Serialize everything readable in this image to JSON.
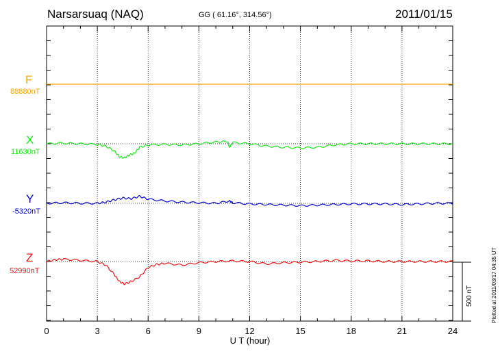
{
  "header": {
    "station": "Narsarsuaq (NAQ)",
    "coords": "GG ( 61.16°, 314.56°)",
    "date": "2011/01/15"
  },
  "xaxis": {
    "label": "U T (hour)",
    "ticks": [
      "0",
      "3",
      "6",
      "9",
      "12",
      "15",
      "18",
      "21",
      "24"
    ]
  },
  "scale_bar": {
    "label": "500 nT",
    "value_nT": 500
  },
  "footer": {
    "plotted": "Plotted at 2011/03/17 04:35 UT"
  },
  "components": [
    {
      "letter": "F",
      "baseline": "88880nT",
      "color": "#f5a800"
    },
    {
      "letter": "X",
      "baseline": "11630nT",
      "color": "#19e619"
    },
    {
      "letter": "Y",
      "baseline": "-5320nT",
      "color": "#0000d0"
    },
    {
      "letter": "Z",
      "baseline": "52990nT",
      "color": "#ee1111"
    }
  ],
  "chart_data": {
    "type": "line",
    "title": "Narsarsuaq (NAQ)",
    "xlabel": "U T (hour)",
    "xlim": [
      0,
      24
    ],
    "x_tick_step": 3,
    "grid": true,
    "series": [
      {
        "name": "F",
        "baseline_nT": 88880,
        "x": [
          0,
          6,
          12,
          18,
          24
        ],
        "y": [
          0,
          0,
          0,
          0,
          0
        ]
      },
      {
        "name": "X",
        "baseline_nT": 11630,
        "x": [
          0,
          1,
          2,
          3,
          3.5,
          4,
          4.3,
          4.6,
          4.9,
          5.2,
          5.5,
          6,
          7,
          8,
          9,
          10,
          10.7,
          10.8,
          11,
          12,
          13,
          14,
          15,
          16,
          17,
          18,
          19,
          20,
          21,
          22,
          23,
          24
        ],
        "y": [
          0,
          5,
          0,
          -5,
          -20,
          -60,
          -110,
          -120,
          -95,
          -80,
          -30,
          -10,
          -5,
          -10,
          0,
          15,
          20,
          -30,
          10,
          0,
          -20,
          -30,
          -35,
          -30,
          -10,
          0,
          0,
          0,
          0,
          0,
          0,
          0
        ]
      },
      {
        "name": "Y",
        "baseline_nT": -5320,
        "x": [
          0,
          1,
          2,
          3,
          3.5,
          4,
          4.5,
          5,
          5.5,
          6,
          7,
          8,
          9,
          10,
          10.8,
          11,
          12,
          13,
          14,
          15,
          16,
          17,
          18,
          19,
          20,
          21,
          22,
          23,
          24
        ],
        "y": [
          0,
          5,
          0,
          0,
          10,
          30,
          45,
          40,
          60,
          35,
          20,
          10,
          5,
          0,
          20,
          5,
          -5,
          -10,
          -15,
          -20,
          -15,
          -10,
          -5,
          -5,
          -5,
          -10,
          -5,
          0,
          0
        ]
      },
      {
        "name": "Z",
        "baseline_nT": 52990,
        "x": [
          0,
          0.5,
          1,
          2,
          3,
          3.5,
          4,
          4.3,
          4.6,
          5,
          5.5,
          6,
          6.5,
          7,
          8,
          9,
          10,
          11,
          12,
          13,
          14,
          15,
          16,
          17,
          18,
          19,
          20,
          21,
          22,
          23,
          24
        ],
        "y": [
          0,
          15,
          20,
          10,
          0,
          -30,
          -110,
          -170,
          -190,
          -170,
          -130,
          -50,
          -25,
          -15,
          -30,
          -10,
          0,
          5,
          0,
          -20,
          -10,
          -5,
          0,
          10,
          5,
          5,
          0,
          0,
          0,
          0,
          0
        ]
      }
    ]
  }
}
